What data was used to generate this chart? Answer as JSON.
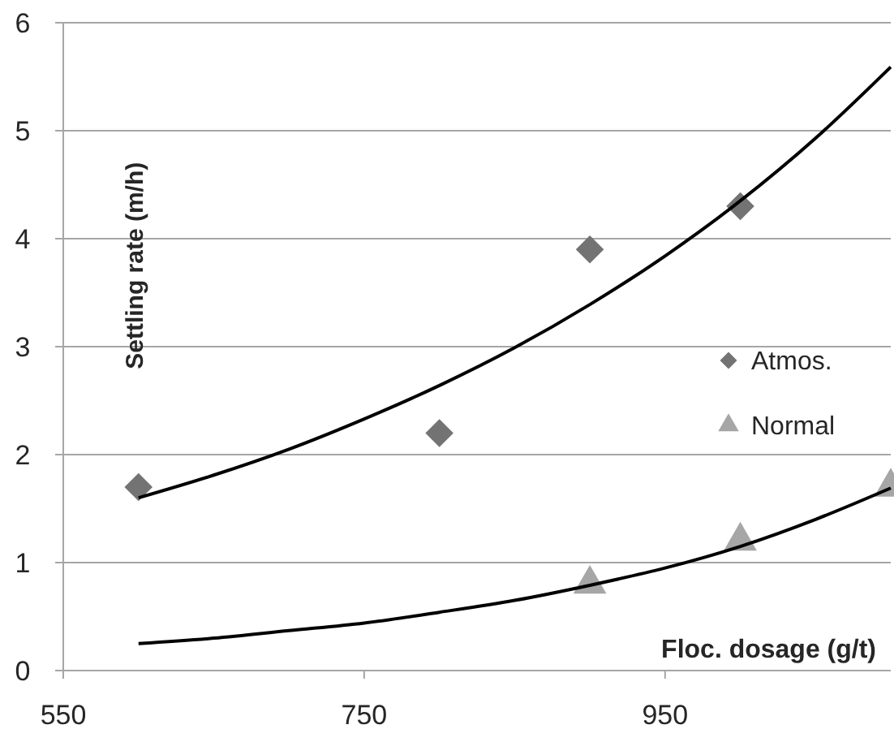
{
  "chart_data": {
    "type": "scatter",
    "xlabel": "Floc. dosage (g/t)",
    "ylabel": "Settling rate (m/h)",
    "xlim": [
      550,
      1100
    ],
    "xticks": [
      550,
      750,
      950
    ],
    "ylim": [
      0,
      6
    ],
    "yticks": [
      0,
      1,
      2,
      3,
      4,
      5,
      6
    ],
    "grid": "y",
    "legend": "right",
    "series": [
      {
        "name": "Atmos.",
        "marker": "diamond",
        "color": "#737373",
        "x": [
          600,
          800,
          900,
          1000
        ],
        "values": [
          1.7,
          2.2,
          3.9,
          4.3
        ]
      },
      {
        "name": "Normal",
        "marker": "triangle",
        "color": "#a6a6a6",
        "x": [
          900,
          1000,
          1100
        ],
        "values": [
          0.8,
          1.2,
          1.7
        ]
      },
      {
        "type": "line",
        "marker": "none",
        "color": "#000000",
        "x": [
          600,
          650,
          700,
          750,
          800,
          850,
          900,
          950,
          1000,
          1050,
          1100
        ],
        "values": [
          1.6,
          1.81,
          2.05,
          2.33,
          2.64,
          2.99,
          3.39,
          3.84,
          4.35,
          4.93,
          5.59
        ]
      },
      {
        "type": "line",
        "marker": "none",
        "color": "#000000",
        "x": [
          600,
          650,
          700,
          750,
          800,
          850,
          900,
          950,
          1000,
          1050,
          1100
        ],
        "values": [
          0.25,
          0.3,
          0.37,
          0.44,
          0.54,
          0.65,
          0.79,
          0.95,
          1.15,
          1.4,
          1.69
        ]
      }
    ]
  }
}
